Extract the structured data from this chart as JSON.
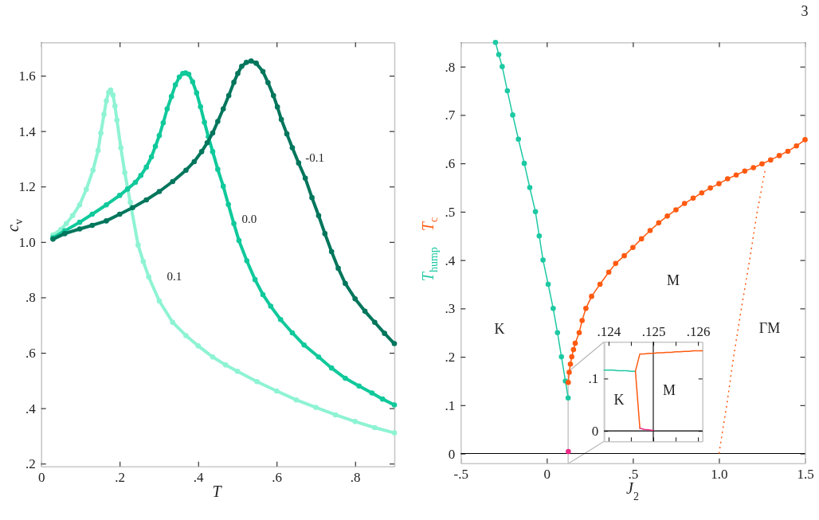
{
  "chart_data": [
    {
      "type": "line",
      "xlabel": "T",
      "ylabel": "c$_{v}$",
      "xlim": [
        0,
        0.9
      ],
      "ylim": [
        0.19,
        1.72
      ],
      "xticks": [
        {
          "value": 0,
          "label": "0"
        },
        {
          "value": 0.2,
          "label": ".2"
        },
        {
          "value": 0.4,
          "label": ".4"
        },
        {
          "value": 0.6,
          "label": ".6"
        },
        {
          "value": 0.8,
          "label": ".8"
        }
      ],
      "yticks": [
        {
          "value": 0.2,
          "label": ".2"
        },
        {
          "value": 0.4,
          "label": ".4"
        },
        {
          "value": 0.6,
          "label": ".6"
        },
        {
          "value": 0.8,
          "label": ".8"
        },
        {
          "value": 1,
          "label": "1.0"
        },
        1.2,
        1.4,
        1.6
      ],
      "marker": "circle",
      "series": [
        {
          "name": "0.1",
          "color": "#8ef3d3",
          "x": [
            0.03,
            0.05,
            0.064,
            0.08,
            0.098,
            0.115,
            0.132,
            0.145,
            0.152,
            0.16,
            0.166,
            0.172,
            0.177,
            0.183,
            0.188,
            0.193,
            0.203,
            0.213,
            0.227,
            0.247,
            0.26,
            0.274,
            0.301,
            0.335,
            0.369,
            0.4,
            0.437,
            0.47,
            0.5,
            0.55,
            0.6,
            0.65,
            0.7,
            0.75,
            0.8,
            0.85,
            0.9
          ],
          "values": [
            1.025,
            1.045,
            1.066,
            1.095,
            1.134,
            1.19,
            1.259,
            1.33,
            1.393,
            1.46,
            1.509,
            1.54,
            1.548,
            1.53,
            1.49,
            1.44,
            1.34,
            1.25,
            1.143,
            0.989,
            0.93,
            0.874,
            0.787,
            0.71,
            0.662,
            0.625,
            0.585,
            0.556,
            0.533,
            0.496,
            0.462,
            0.43,
            0.403,
            0.376,
            0.352,
            0.33,
            0.311
          ]
        },
        {
          "name": "0.0",
          "color": "#10c99b",
          "x": [
            0.03,
            0.06,
            0.098,
            0.13,
            0.166,
            0.2,
            0.22,
            0.24,
            0.254,
            0.268,
            0.281,
            0.291,
            0.301,
            0.311,
            0.321,
            0.332,
            0.342,
            0.352,
            0.361,
            0.368,
            0.376,
            0.386,
            0.396,
            0.406,
            0.416,
            0.426,
            0.437,
            0.45,
            0.464,
            0.477,
            0.491,
            0.504,
            0.524,
            0.545,
            0.565,
            0.585,
            0.61,
            0.64,
            0.67,
            0.707,
            0.74,
            0.775,
            0.81,
            0.843,
            0.87,
            0.9
          ],
          "values": [
            1.015,
            1.04,
            1.071,
            1.1,
            1.134,
            1.168,
            1.191,
            1.215,
            1.24,
            1.27,
            1.307,
            1.345,
            1.384,
            1.43,
            1.48,
            1.525,
            1.567,
            1.595,
            1.608,
            1.61,
            1.605,
            1.578,
            1.538,
            1.488,
            1.432,
            1.38,
            1.326,
            1.262,
            1.201,
            1.135,
            1.066,
            1.005,
            0.932,
            0.864,
            0.81,
            0.768,
            0.72,
            0.672,
            0.628,
            0.585,
            0.545,
            0.508,
            0.48,
            0.455,
            0.433,
            0.412
          ]
        },
        {
          "name": "-0.1",
          "color": "#00765c",
          "x": [
            0.03,
            0.06,
            0.098,
            0.13,
            0.166,
            0.2,
            0.233,
            0.268,
            0.301,
            0.335,
            0.369,
            0.39,
            0.409,
            0.423,
            0.437,
            0.45,
            0.464,
            0.478,
            0.491,
            0.501,
            0.511,
            0.523,
            0.535,
            0.548,
            0.565,
            0.578,
            0.592,
            0.602,
            0.612,
            0.626,
            0.64,
            0.656,
            0.673,
            0.69,
            0.707,
            0.723,
            0.74,
            0.757,
            0.775,
            0.8,
            0.825,
            0.85,
            0.875,
            0.9
          ],
          "values": [
            1.01,
            1.03,
            1.047,
            1.06,
            1.076,
            1.1,
            1.124,
            1.152,
            1.182,
            1.218,
            1.259,
            1.29,
            1.326,
            1.358,
            1.393,
            1.435,
            1.48,
            1.528,
            1.576,
            1.608,
            1.634,
            1.648,
            1.653,
            1.645,
            1.615,
            1.575,
            1.528,
            1.487,
            1.442,
            1.39,
            1.34,
            1.285,
            1.23,
            1.16,
            1.095,
            1.03,
            0.965,
            0.905,
            0.85,
            0.795,
            0.75,
            0.71,
            0.67,
            0.633
          ]
        }
      ]
    },
    {
      "type": "line",
      "xlabel": "J$_{2}$",
      "xlim": [
        -0.5,
        1.5
      ],
      "ylim": [
        -0.02,
        0.85
      ],
      "xticks": [
        {
          "value": -0.5,
          "label": "-.5"
        },
        {
          "value": 0,
          "label": "0"
        },
        {
          "value": 0.5,
          "label": ".5"
        },
        {
          "value": 1,
          "label": "1.0"
        },
        1.5
      ],
      "yticks": [
        {
          "value": 0,
          "label": "0"
        },
        {
          "value": 0.1,
          "label": ".1"
        },
        {
          "value": 0.2,
          "label": ".2"
        },
        {
          "value": 0.3,
          "label": ".3"
        },
        {
          "value": 0.4,
          "label": ".4"
        },
        {
          "value": 0.5,
          "label": ".5"
        },
        {
          "value": 0.6,
          "label": ".6"
        },
        {
          "value": 0.7,
          "label": ".7"
        },
        {
          "value": 0.8,
          "label": ".8"
        }
      ],
      "marker": "circle",
      "ref_lines": [
        {
          "axis": "y",
          "value": 0,
          "color": "#000000"
        }
      ],
      "annotations": [
        "K",
        "M",
        "ΓM",
        "3"
      ],
      "series": [
        {
          "name": "T$_{hump}$",
          "color": "#1cc9a3",
          "x": [
            -0.298,
            -0.279,
            -0.259,
            -0.229,
            -0.198,
            -0.165,
            -0.131,
            -0.099,
            -0.066,
            -0.044,
            -0.022,
            0.008,
            0.037,
            0.062,
            0.085,
            0.108,
            0.124
          ],
          "values": [
            0.85,
            0.825,
            0.8,
            0.75,
            0.7,
            0.65,
            0.6,
            0.55,
            0.5,
            0.45,
            0.4,
            0.35,
            0.3,
            0.25,
            0.2,
            0.15,
            0.115
          ]
        },
        {
          "name": "T$_{c}$",
          "color": "#ff5a10",
          "x": [
            0.1247,
            0.13,
            0.137,
            0.145,
            0.155,
            0.165,
            0.188,
            0.205,
            0.227,
            0.26,
            0.309,
            0.36,
            0.4,
            0.45,
            0.5,
            0.55,
            0.6,
            0.65,
            0.7,
            0.75,
            0.8,
            0.85,
            0.9,
            0.95,
            1,
            1.05,
            1.1,
            1.15,
            1.2,
            1.25,
            1.3,
            1.35,
            1.4,
            1.45,
            1.5
          ],
          "values": [
            0.147,
            0.168,
            0.185,
            0.2,
            0.215,
            0.228,
            0.25,
            0.275,
            0.3,
            0.325,
            0.35,
            0.375,
            0.393,
            0.409,
            0.426,
            0.444,
            0.461,
            0.477,
            0.491,
            0.504,
            0.517,
            0.528,
            0.539,
            0.549,
            0.558,
            0.568,
            0.576,
            0.584,
            0.591,
            0.599,
            0.607,
            0.616,
            0.625,
            0.636,
            0.649
          ]
        },
        {
          "color": "#ff5a10",
          "line_style": "dotted",
          "marker": "none",
          "x": [
            1,
            1.045,
            1.085,
            1.13,
            1.178,
            1.222,
            1.269
          ],
          "values": [
            0,
            0.1,
            0.2,
            0.3,
            0.4,
            0.5,
            0.588
          ]
        },
        {
          "type": "scatter",
          "color": "#ee2a86",
          "x": [
            0.125
          ],
          "values": [
            0.004
          ]
        }
      ]
    },
    {
      "type": "line",
      "xlim": [
        0.1239,
        0.1261
      ],
      "ylim": [
        -0.02,
        0.17
      ],
      "xticks": [
        {
          "value": 0.124,
          "label": ".124"
        },
        {
          "value": 0.1245,
          "label": null
        },
        {
          "value": 0.125,
          "label": ".125"
        },
        {
          "value": 0.1255,
          "label": null
        },
        {
          "value": 0.126,
          "label": ".126"
        }
      ],
      "yticks": [
        {
          "value": 0,
          "label": "0"
        },
        {
          "value": 0.1,
          "label": ".1"
        }
      ],
      "ref_lines": [
        {
          "axis": "y",
          "value": 0,
          "color": "#000000"
        },
        {
          "axis": "x",
          "value": 0.125,
          "color": "#000000"
        }
      ],
      "annotations": [
        "K",
        "M"
      ],
      "series": [
        {
          "color": "#1cc9a3",
          "x": [
            0.1239,
            0.124,
            0.1241,
            0.1242,
            0.1243,
            0.1244,
            0.1245,
            0.1246
          ],
          "values": [
            0.116,
            0.116,
            0.116,
            0.115,
            0.115,
            0.115,
            0.114,
            0.114
          ]
        },
        {
          "color": "#ff5a10",
          "x": [
            0.1247,
            0.1246,
            0.1247,
            0.1248,
            0.1249,
            0.125,
            0.1251,
            0.1252,
            0.1253,
            0.1254,
            0.1255,
            0.1256,
            0.1257,
            0.1258,
            0.1259,
            0.126,
            0.1261
          ],
          "values": [
            0.005,
            0.114,
            0.147,
            0.147,
            0.148,
            0.148,
            0.149,
            0.149,
            0.15,
            0.15,
            0.151,
            0.151,
            0.152,
            0.152,
            0.153,
            0.153,
            0.153
          ]
        },
        {
          "color": "#ee2a86",
          "x": [
            0.1247,
            0.1248,
            0.1249,
            0.125
          ],
          "values": [
            0.005,
            0.003,
            0.002,
            0.001
          ]
        }
      ]
    }
  ]
}
